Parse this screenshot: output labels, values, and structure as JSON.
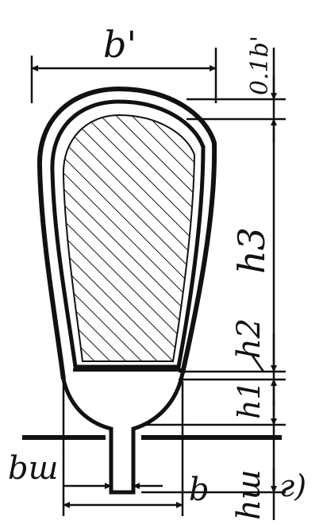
{
  "labels": {
    "top_width": "b'",
    "crown_height": "0.1b'",
    "body_height": "h3",
    "height_2": "h2",
    "height_1": "h1",
    "slot_neck_width": "bш",
    "slot_width": "b",
    "slot_height": "hш",
    "panel_letter": "г)"
  },
  "colors": {
    "ink": "#111111",
    "background": "#ffffff",
    "hatch": "#111111"
  }
}
